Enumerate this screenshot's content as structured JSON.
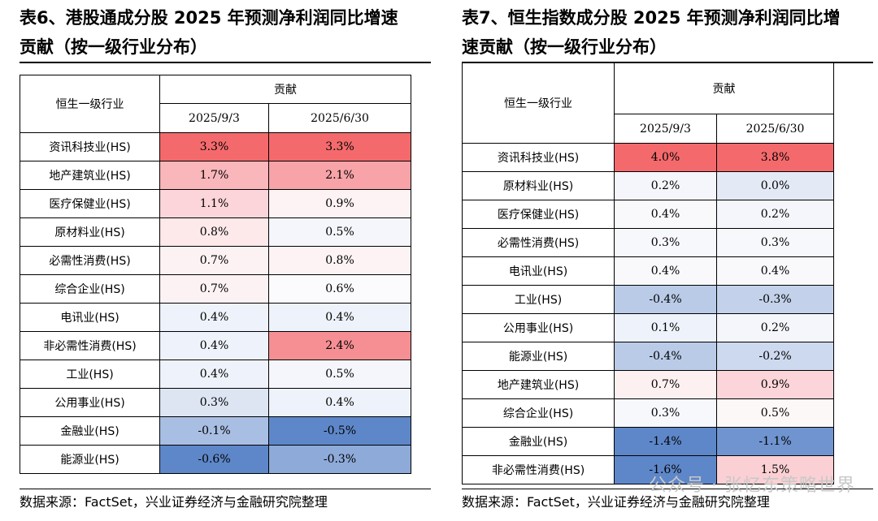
{
  "colors": {
    "red_strong": "#f46a6c",
    "red_mid": "#f7a3a8",
    "red_light": "#fbd5d9",
    "red_faint": "#fde8ea",
    "white": "#ffffff",
    "blue_faint": "#eef2fa",
    "blue_light": "#dde5f3",
    "blue_mid": "#b9cbe7",
    "blue_strong": "#8eaad9",
    "blue_deep": "#5e87c9"
  },
  "left": {
    "title": "表6、港股通成分股 2025 年预测净利润同比增速贡献（按一级行业分布）",
    "title_line1": "表6、港股通成分股 2025 年预测净利润同比增速",
    "title_line2": "贡献（按一级行业分布）",
    "header_industry": "恒生一级行业",
    "header_group": "贡献",
    "header_date1": "2025/9/3",
    "header_date2": "2025/6/30",
    "rows": [
      {
        "industry": "资讯科技业(HS)",
        "v1": "3.3%",
        "v2": "3.3%",
        "c1": "#f46a6c",
        "c2": "#f46a6c"
      },
      {
        "industry": "地产建筑业(HS)",
        "v1": "1.7%",
        "v2": "2.1%",
        "c1": "#f9b6bb",
        "c2": "#f7a3a8"
      },
      {
        "industry": "医疗保健业(HS)",
        "v1": "1.1%",
        "v2": "0.9%",
        "c1": "#fbd5d9",
        "c2": "#fdf3f4"
      },
      {
        "industry": "原材料业(HS)",
        "v1": "0.8%",
        "v2": "0.5%",
        "c1": "#fde8ea",
        "c2": "#f4f6fb"
      },
      {
        "industry": "必需性消费(HS)",
        "v1": "0.7%",
        "v2": "0.8%",
        "c1": "#fdf2f3",
        "c2": "#fdf3f4"
      },
      {
        "industry": "综合企业(HS)",
        "v1": "0.7%",
        "v2": "0.6%",
        "c1": "#fdf2f3",
        "c2": "#fbfbfd"
      },
      {
        "industry": "电讯业(HS)",
        "v1": "0.4%",
        "v2": "0.4%",
        "c1": "#eef2fa",
        "c2": "#eef2fa"
      },
      {
        "industry": "非必需性消费(HS)",
        "v1": "0.4%",
        "v2": "2.4%",
        "c1": "#eef2fa",
        "c2": "#f58f93"
      },
      {
        "industry": "工业(HS)",
        "v1": "0.4%",
        "v2": "0.5%",
        "c1": "#eef2fa",
        "c2": "#f4f6fb"
      },
      {
        "industry": "公用事业(HS)",
        "v1": "0.3%",
        "v2": "0.4%",
        "c1": "#dde5f3",
        "c2": "#eef2fa"
      },
      {
        "industry": "金融业(HS)",
        "v1": "-0.1%",
        "v2": "-0.5%",
        "c1": "#a9bee3",
        "c2": "#5e87c9"
      },
      {
        "industry": "能源业(HS)",
        "v1": "-0.6%",
        "v2": "-0.3%",
        "c1": "#5e87c9",
        "c2": "#8eaad9"
      }
    ],
    "source": "数据来源：FactSet，兴业证券经济与金融研究院整理"
  },
  "right": {
    "title": "表7、恒生指数成分股 2025 年预测净利润同比增速贡献（按一级行业分布）",
    "title_line1": "表7、恒生指数成分股 2025 年预测净利润同比增",
    "title_line2": "速贡献（按一级行业分布）",
    "header_industry": "恒生一级行业",
    "header_group": "贡献",
    "header_date1": "2025/9/3",
    "header_date2": "2025/6/30",
    "rows": [
      {
        "industry": "资讯科技业(HS)",
        "v1": "4.0%",
        "v2": "3.8%",
        "c1": "#f46a6c",
        "c2": "#f46a6c"
      },
      {
        "industry": "原材料业(HS)",
        "v1": "0.2%",
        "v2": "0.0%",
        "c1": "#f4f6fb",
        "c2": "#e3e9f5"
      },
      {
        "industry": "医疗保健业(HS)",
        "v1": "0.4%",
        "v2": "0.2%",
        "c1": "#f9f9fc",
        "c2": "#f4f6fb"
      },
      {
        "industry": "必需性消费(HS)",
        "v1": "0.3%",
        "v2": "0.3%",
        "c1": "#f7f8fc",
        "c2": "#f7f8fc"
      },
      {
        "industry": "电讯业(HS)",
        "v1": "0.4%",
        "v2": "0.4%",
        "c1": "#f9f9fc",
        "c2": "#f9f9fc"
      },
      {
        "industry": "工业(HS)",
        "v1": "-0.4%",
        "v2": "-0.3%",
        "c1": "#b9cbe7",
        "c2": "#c3d2ea"
      },
      {
        "industry": "公用事业(HS)",
        "v1": "0.1%",
        "v2": "0.2%",
        "c1": "#eef2fa",
        "c2": "#f4f6fb"
      },
      {
        "industry": "能源业(HS)",
        "v1": "-0.4%",
        "v2": "-0.2%",
        "c1": "#b9cbe7",
        "c2": "#cdd9ee"
      },
      {
        "industry": "地产建筑业(HS)",
        "v1": "0.7%",
        "v2": "0.9%",
        "c1": "#fdf0f1",
        "c2": "#fbd5d9"
      },
      {
        "industry": "综合企业(HS)",
        "v1": "0.3%",
        "v2": "0.5%",
        "c1": "#f7f8fc",
        "c2": "#fdf8f8"
      },
      {
        "industry": "金融业(HS)",
        "v1": "-1.4%",
        "v2": "-1.1%",
        "c1": "#5e87c9",
        "c2": "#6f94cf"
      },
      {
        "industry": "非必需性消费(HS)",
        "v1": "-1.6%",
        "v2": "1.5%",
        "c1": "#5e87c9",
        "c2": "#fbd0d4"
      }
    ],
    "source": "数据来源：FactSet，兴业证券经济与金融研究院整理"
  },
  "watermark": "公众号 · 张忆东策略世界"
}
